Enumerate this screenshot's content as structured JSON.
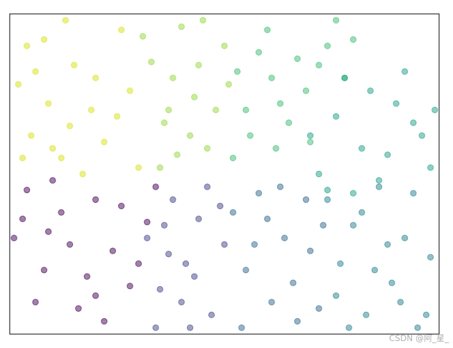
{
  "chart_data": {
    "type": "scatter",
    "xlim": [
      0,
      1
    ],
    "ylim": [
      0,
      1
    ],
    "series": [
      {
        "color": "#d8e219",
        "x": [
          0.02,
          0.05,
          0.08,
          0.12,
          0.15,
          0.19,
          0.22,
          0.26,
          0.3,
          0.04,
          0.09,
          0.14,
          0.2,
          0.25,
          0.03,
          0.1,
          0.17,
          0.28,
          0.06,
          0.13
        ],
        "values": [
          0.78,
          0.62,
          0.92,
          0.55,
          0.84,
          0.7,
          0.6,
          0.95,
          0.52,
          0.9,
          0.72,
          0.65,
          0.8,
          0.68,
          0.55,
          0.58,
          0.5,
          0.76,
          0.82,
          0.98
        ]
      },
      {
        "color": "#95d840",
        "x": [
          0.33,
          0.36,
          0.4,
          0.43,
          0.46,
          0.5,
          0.35,
          0.38,
          0.42,
          0.48,
          0.31,
          0.45,
          0.39,
          0.51,
          0.37,
          0.44
        ],
        "values": [
          0.85,
          0.66,
          0.96,
          0.74,
          0.58,
          0.9,
          0.52,
          0.8,
          0.62,
          0.7,
          0.93,
          0.98,
          0.56,
          0.78,
          0.7,
          0.84
        ]
      },
      {
        "color": "#3fbc73",
        "x": [
          0.53,
          0.56,
          0.6,
          0.63,
          0.67,
          0.7,
          0.74,
          0.78,
          0.55,
          0.62,
          0.69,
          0.76,
          0.58,
          0.65,
          0.72,
          0.8,
          0.52,
          0.61
        ],
        "values": [
          0.82,
          0.62,
          0.95,
          0.72,
          0.86,
          0.6,
          0.9,
          0.8,
          0.7,
          0.58,
          0.76,
          0.98,
          0.88,
          0.66,
          0.84,
          0.92,
          0.55,
          0.8
        ]
      },
      {
        "color": "#1fa088",
        "x": [
          0.72,
          0.76,
          0.8,
          0.84,
          0.88,
          0.92,
          0.96,
          0.99,
          0.74,
          0.82,
          0.9,
          0.78,
          0.86,
          0.94,
          0.98,
          0.7
        ],
        "values": [
          0.5,
          0.68,
          0.44,
          0.76,
          0.56,
          0.82,
          0.62,
          0.7,
          0.45,
          0.58,
          0.72,
          0.8,
          0.48,
          0.66,
          0.52,
          0.62
        ]
      },
      {
        "color": "#440154",
        "x": [
          0.01,
          0.04,
          0.08,
          0.12,
          0.16,
          0.2,
          0.24,
          0.28,
          0.32,
          0.06,
          0.1,
          0.14,
          0.18,
          0.22,
          0.26,
          0.3,
          0.03,
          0.34,
          0.09,
          0.2
        ],
        "values": [
          0.3,
          0.45,
          0.2,
          0.38,
          0.08,
          0.42,
          0.26,
          0.15,
          0.35,
          0.1,
          0.48,
          0.28,
          0.18,
          0.04,
          0.4,
          0.22,
          0.36,
          0.46,
          0.32,
          0.12
        ]
      },
      {
        "color": "#414487",
        "x": [
          0.32,
          0.35,
          0.38,
          0.41,
          0.44,
          0.47,
          0.5,
          0.34,
          0.4,
          0.46,
          0.37,
          0.43,
          0.49,
          0.36,
          0.42
        ],
        "values": [
          0.3,
          0.14,
          0.42,
          0.22,
          0.36,
          0.06,
          0.28,
          0.02,
          0.1,
          0.46,
          0.25,
          0.18,
          0.4,
          0.34,
          0.02
        ]
      },
      {
        "color": "#31688e",
        "x": [
          0.52,
          0.55,
          0.58,
          0.61,
          0.64,
          0.67,
          0.7,
          0.73,
          0.54,
          0.6,
          0.66,
          0.72,
          0.57,
          0.63,
          0.69
        ],
        "values": [
          0.38,
          0.2,
          0.44,
          0.1,
          0.3,
          0.04,
          0.26,
          0.34,
          0.02,
          0.36,
          0.16,
          0.08,
          0.28,
          0.46,
          0.42
        ]
      },
      {
        "color": "#26828e",
        "x": [
          0.74,
          0.77,
          0.8,
          0.83,
          0.86,
          0.89,
          0.92,
          0.95,
          0.98,
          0.76,
          0.82,
          0.88,
          0.94,
          0.79,
          0.85,
          0.91,
          0.97
        ],
        "values": [
          0.42,
          0.22,
          0.34,
          0.06,
          0.46,
          0.16,
          0.3,
          0.02,
          0.24,
          0.12,
          0.38,
          0.28,
          0.44,
          0.02,
          0.2,
          0.1,
          0.06
        ]
      }
    ],
    "watermark": "CSDN @阿_星_"
  }
}
